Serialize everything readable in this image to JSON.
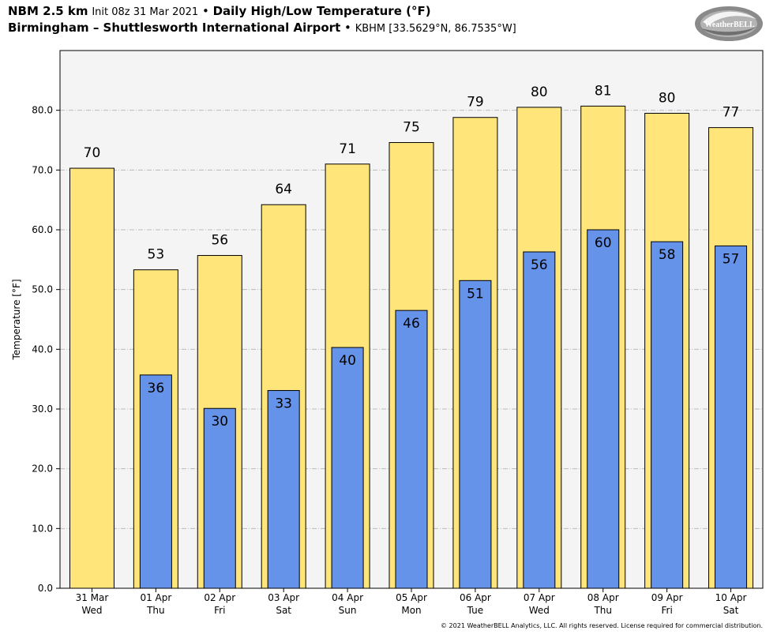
{
  "header": {
    "model": "NBM 2.5 km",
    "init": "Init 08z 31 Mar 2021",
    "bullet": "•",
    "product": "Daily High/Low Temperature (°F)",
    "station_name": "Birmingham – Shuttlesworth International Airport",
    "station_info": "KBHM [33.5629°N, 86.7535°W]"
  },
  "logo": {
    "text": "WeatherBELL",
    "icon": "weatherbell-swirl-logo"
  },
  "footer": "© 2021 WeatherBELL Analytics, LLC. All rights reserved. License required for commercial distribution.",
  "colors": {
    "high": "#FFE57A",
    "low": "#6593EA",
    "plot_bg": "#F4F4F4",
    "grid": "#BBBBBB"
  },
  "chart_data": {
    "type": "bar",
    "ylabel": "Temperature [°F]",
    "ylim": [
      0,
      90
    ],
    "yticks": [
      0,
      10,
      20,
      30,
      40,
      50,
      60,
      70,
      80
    ],
    "ytick_labels": [
      "0.0",
      "10.0",
      "20.0",
      "30.0",
      "40.0",
      "50.0",
      "60.0",
      "70.0",
      "80.0"
    ],
    "grid": true,
    "categories": [
      "31 Mar",
      "01 Apr",
      "02 Apr",
      "03 Apr",
      "04 Apr",
      "05 Apr",
      "06 Apr",
      "07 Apr",
      "08 Apr",
      "09 Apr",
      "10 Apr"
    ],
    "weekdays": [
      "Wed",
      "Thu",
      "Fri",
      "Sat",
      "Sun",
      "Mon",
      "Tue",
      "Wed",
      "Thu",
      "Fri",
      "Sat"
    ],
    "series": [
      {
        "values": [
          70.3,
          53.3,
          55.7,
          64.2,
          71.0,
          74.6,
          78.8,
          80.5,
          80.7,
          79.5,
          77.1
        ],
        "labels": [
          "70",
          "53",
          "56",
          "64",
          "71",
          "75",
          "79",
          "80",
          "81",
          "80",
          "77"
        ]
      },
      {
        "values": [
          null,
          35.7,
          30.1,
          33.1,
          40.3,
          46.5,
          51.5,
          56.3,
          60.0,
          58.0,
          57.3
        ],
        "labels": [
          "",
          "36",
          "30",
          "33",
          "40",
          "46",
          "51",
          "56",
          "60",
          "58",
          "57"
        ]
      }
    ]
  }
}
